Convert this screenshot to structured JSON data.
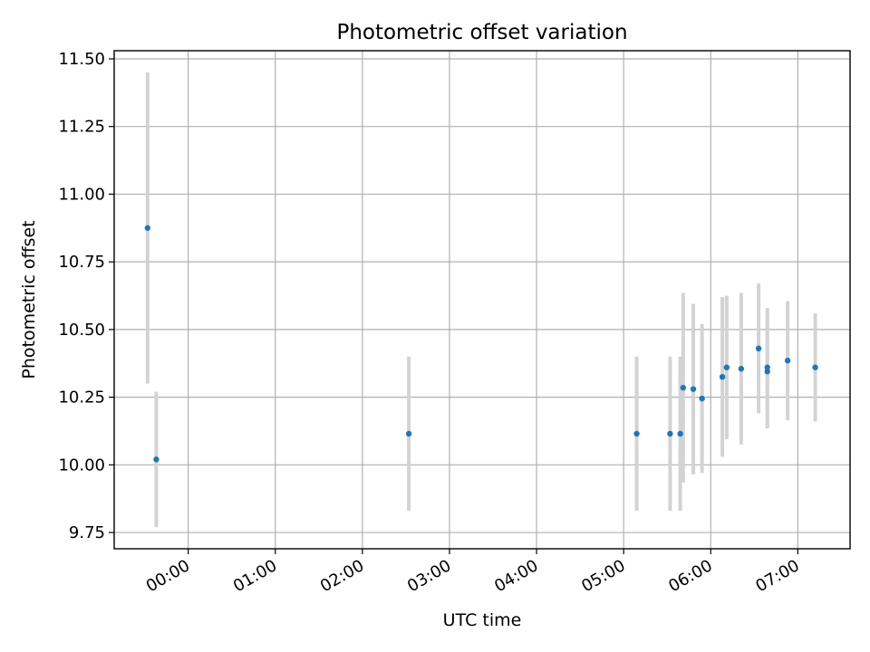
{
  "chart_data": {
    "type": "scatter",
    "title": "Photometric offset variation",
    "xlabel": "UTC time",
    "ylabel": "Photometric offset",
    "x_axis_kind": "time",
    "xlim": [
      "-00:51",
      "07:36"
    ],
    "ylim": [
      9.69,
      11.53
    ],
    "grid": true,
    "x_tick_labels": [
      "00:00",
      "01:00",
      "02:00",
      "03:00",
      "04:00",
      "05:00",
      "06:00",
      "07:00"
    ],
    "y_ticks": [
      9.75,
      10.0,
      10.25,
      10.5,
      10.75,
      11.0,
      11.25,
      11.5
    ],
    "y_tick_labels": [
      "9.75",
      "10.00",
      "10.25",
      "10.50",
      "10.75",
      "11.00",
      "11.25",
      "11.50"
    ],
    "colors": {
      "point": "#1f77b4",
      "errorbar": "#d3d3d3",
      "grid": "#b0b0b0"
    },
    "points": [
      {
        "x": "-00:28",
        "y": 10.875,
        "yerr": 0.575
      },
      {
        "x": "-00:22",
        "y": 10.02,
        "yerr": 0.25
      },
      {
        "x": "02:32",
        "y": 10.115,
        "yerr": 0.285
      },
      {
        "x": "05:09",
        "y": 10.115,
        "yerr": 0.285
      },
      {
        "x": "05:32",
        "y": 10.115,
        "yerr": 0.285
      },
      {
        "x": "05:39",
        "y": 10.115,
        "yerr": 0.285
      },
      {
        "x": "05:41",
        "y": 10.285,
        "yerr": 0.35
      },
      {
        "x": "05:48",
        "y": 10.28,
        "yerr": 0.315
      },
      {
        "x": "05:54",
        "y": 10.245,
        "yerr": 0.275
      },
      {
        "x": "06:08",
        "y": 10.325,
        "yerr": 0.295
      },
      {
        "x": "06:11",
        "y": 10.36,
        "yerr": 0.265
      },
      {
        "x": "06:21",
        "y": 10.355,
        "yerr": 0.28
      },
      {
        "x": "06:33",
        "y": 10.43,
        "yerr": 0.24
      },
      {
        "x": "06:39",
        "y": 10.36,
        "yerr": 0.22
      },
      {
        "x": "06:39",
        "y": 10.345,
        "yerr": 0.21
      },
      {
        "x": "06:53",
        "y": 10.385,
        "yerr": 0.22
      },
      {
        "x": "07:12",
        "y": 10.36,
        "yerr": 0.2
      }
    ]
  }
}
